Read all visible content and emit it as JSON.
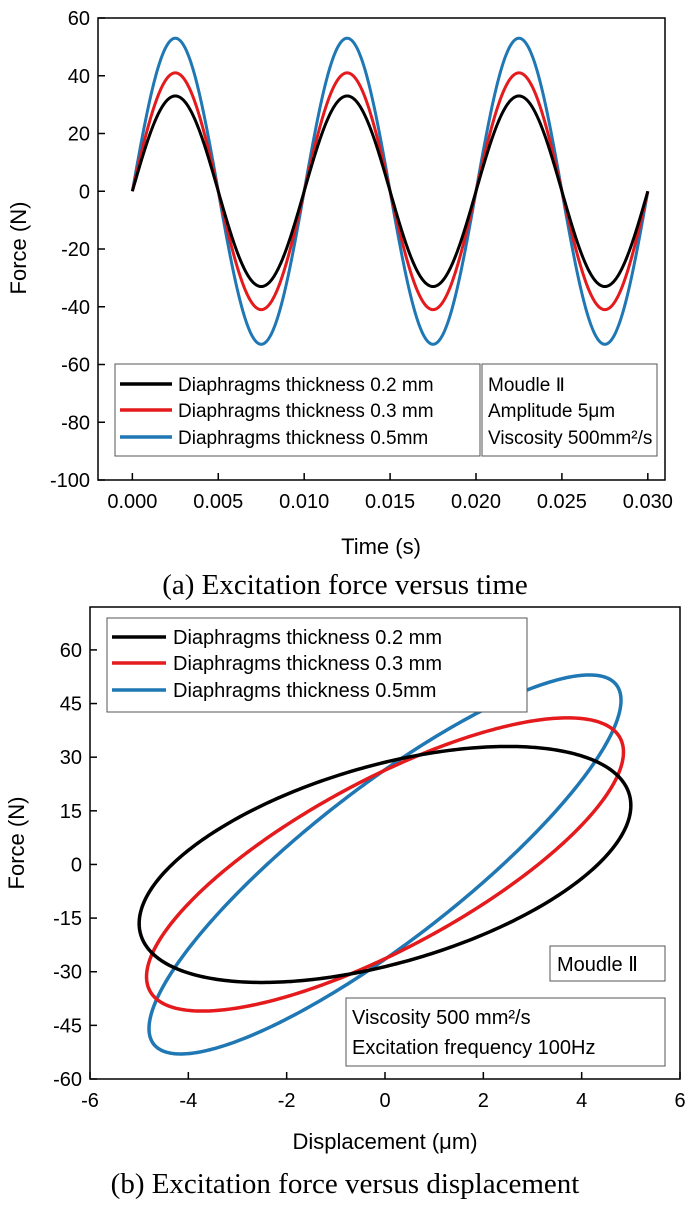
{
  "chart_data": [
    {
      "type": "line",
      "caption": "(a) Excitation force versus time",
      "xlabel": "Time (s)",
      "ylabel": "Force (N)",
      "xlim": [
        -0.002,
        0.031
      ],
      "ylim": [
        -100,
        60
      ],
      "xticks": [
        0.0,
        0.005,
        0.01,
        0.015,
        0.02,
        0.025,
        0.03
      ],
      "xtick_labels": [
        "0.000",
        "0.005",
        "0.010",
        "0.015",
        "0.020",
        "0.025",
        "0.030"
      ],
      "yticks": [
        -100,
        -80,
        -60,
        -40,
        -20,
        0,
        20,
        40,
        60
      ],
      "ytick_labels": [
        "-100",
        "-80",
        "-60",
        "-40",
        "-20",
        "0",
        "20",
        "40",
        "60"
      ],
      "frequency_hz": 100,
      "t_range": [
        0.0,
        0.03
      ],
      "series": [
        {
          "name": "Diaphragms thickness 0.2 mm",
          "color": "#000000",
          "amplitude": 33
        },
        {
          "name": "Diaphragms thickness 0.3 mm",
          "color": "#e41a1c",
          "amplitude": 41
        },
        {
          "name": "Diaphragms thickness 0.5mm",
          "color": "#1f77b4",
          "amplitude": 53
        }
      ],
      "info_box": [
        "Moudle Ⅱ",
        "Amplitude 5μm",
        "Viscosity 500mm²/s"
      ],
      "legend_position": "bottom-left"
    },
    {
      "type": "line",
      "caption": "(b) Excitation force versus displacement",
      "xlabel": "Displacement (μm)",
      "ylabel": "Force (N)",
      "xlim": [
        -6,
        6
      ],
      "ylim": [
        -60,
        72
      ],
      "xticks": [
        -6,
        -4,
        -2,
        0,
        2,
        4,
        6
      ],
      "xtick_labels": [
        "-6",
        "-4",
        "-2",
        "0",
        "2",
        "4",
        "6"
      ],
      "yticks": [
        -60,
        -45,
        -30,
        -15,
        0,
        15,
        30,
        45,
        60
      ],
      "ytick_labels": [
        "-60",
        "-45",
        "-30",
        "-15",
        "0",
        "15",
        "30",
        "45",
        "60"
      ],
      "series": [
        {
          "name": "Diaphragms thickness 0.2 mm",
          "color": "#000000",
          "x_amplitude": 5.0,
          "y_amplitude": 33,
          "phase_deg": 60
        },
        {
          "name": "Diaphragms thickness 0.3 mm",
          "color": "#e41a1c",
          "x_amplitude": 4.85,
          "y_amplitude": 41,
          "phase_deg": 40
        },
        {
          "name": "Diaphragms thickness 0.5mm",
          "color": "#1f77b4",
          "x_amplitude": 4.8,
          "y_amplitude": 53,
          "phase_deg": 30
        }
      ],
      "info_box_1": [
        "Moudle Ⅱ"
      ],
      "info_box_2": [
        "Viscosity 500 mm²/s",
        "Excitation frequency 100Hz"
      ],
      "legend_position": "top-left"
    }
  ]
}
